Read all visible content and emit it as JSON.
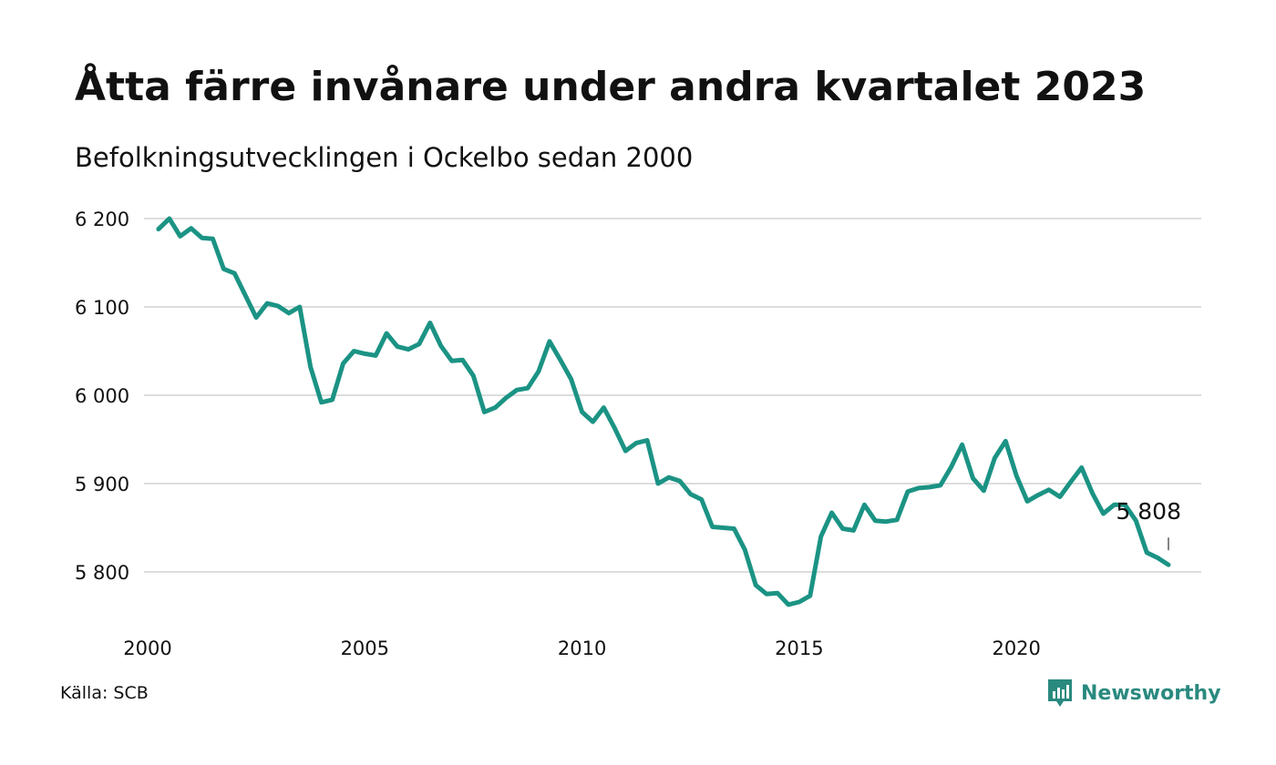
{
  "header": {
    "title": "Åtta färre invånare under andra kvartalet 2023",
    "subtitle": "Befolkningsutvecklingen i Ockelbo sedan 2000"
  },
  "footer": {
    "source": "Källa: SCB",
    "brand": "Newsworthy"
  },
  "colors": {
    "line": "#1b9384",
    "grid": "#dddddd",
    "brand": "#2a8a7f"
  },
  "chart_data": {
    "type": "line",
    "title": "Åtta färre invånare under andra kvartalet 2023",
    "subtitle": "Befolkningsutvecklingen i Ockelbo sedan 2000",
    "xlabel": "",
    "ylabel": "",
    "x_ticks": [
      2000,
      2005,
      2010,
      2015,
      2020
    ],
    "x_tick_labels": [
      "2000",
      "2005",
      "2010",
      "2015",
      "2020"
    ],
    "y_ticks": [
      5800,
      5900,
      6000,
      6100,
      6200
    ],
    "y_tick_labels": [
      "5 800",
      "5 900",
      "6 000",
      "6 100",
      "6 200"
    ],
    "xlim": [
      2000,
      2024.25
    ],
    "ylim": [
      5748,
      6215
    ],
    "grid": "horizontal",
    "legend": "none",
    "end_label": "5 808",
    "series": [
      {
        "x": [
          2000.25,
          2000.5,
          2000.75,
          2001.0,
          2001.25,
          2001.5,
          2001.75,
          2002.0,
          2002.25,
          2002.5,
          2002.75,
          2003.0,
          2003.25,
          2003.5,
          2003.75,
          2004.0,
          2004.25,
          2004.5,
          2004.75,
          2005.0,
          2005.25,
          2005.5,
          2005.75,
          2006.0,
          2006.25,
          2006.5,
          2006.75,
          2007.0,
          2007.25,
          2007.5,
          2007.75,
          2008.0,
          2008.25,
          2008.5,
          2008.75,
          2009.0,
          2009.25,
          2009.5,
          2009.75,
          2010.0,
          2010.25,
          2010.5,
          2010.75,
          2011.0,
          2011.25,
          2011.5,
          2011.75,
          2012.0,
          2012.25,
          2012.5,
          2012.75,
          2013.0,
          2013.25,
          2013.5,
          2013.75,
          2014.0,
          2014.25,
          2014.5,
          2014.75,
          2015.0,
          2015.25,
          2015.5,
          2015.75,
          2016.0,
          2016.25,
          2016.5,
          2016.75,
          2017.0,
          2017.25,
          2017.5,
          2017.75,
          2018.0,
          2018.25,
          2018.5,
          2018.75,
          2019.0,
          2019.25,
          2019.5,
          2019.75,
          2020.0,
          2020.25,
          2020.5,
          2020.75,
          2021.0,
          2021.25,
          2021.5,
          2021.75,
          2022.0,
          2022.25,
          2022.5,
          2022.75,
          2023.0,
          2023.25,
          2023.5
        ],
        "y": [
          6188,
          6200,
          6180,
          6189,
          6178,
          6177,
          6143,
          6138,
          6113,
          6088,
          6104,
          6101,
          6093,
          6100,
          6032,
          5992,
          5995,
          6036,
          6050,
          6047,
          6045,
          6070,
          6055,
          6052,
          6058,
          6082,
          6056,
          6039,
          6040,
          6022,
          5981,
          5986,
          5997,
          6006,
          6008,
          6027,
          6061,
          6040,
          6018,
          5981,
          5970,
          5986,
          5963,
          5937,
          5946,
          5949,
          5900,
          5907,
          5903,
          5888,
          5882,
          5851,
          5850,
          5849,
          5825,
          5785,
          5775,
          5776,
          5763,
          5766,
          5773,
          5840,
          5867,
          5849,
          5847,
          5876,
          5858,
          5857,
          5859,
          5891,
          5895,
          5896,
          5898,
          5919,
          5944,
          5906,
          5892,
          5929,
          5948,
          5909,
          5880,
          5887,
          5893,
          5885,
          5902,
          5918,
          5889,
          5866,
          5876,
          5876,
          5858,
          5822,
          5816,
          5808
        ]
      }
    ]
  }
}
